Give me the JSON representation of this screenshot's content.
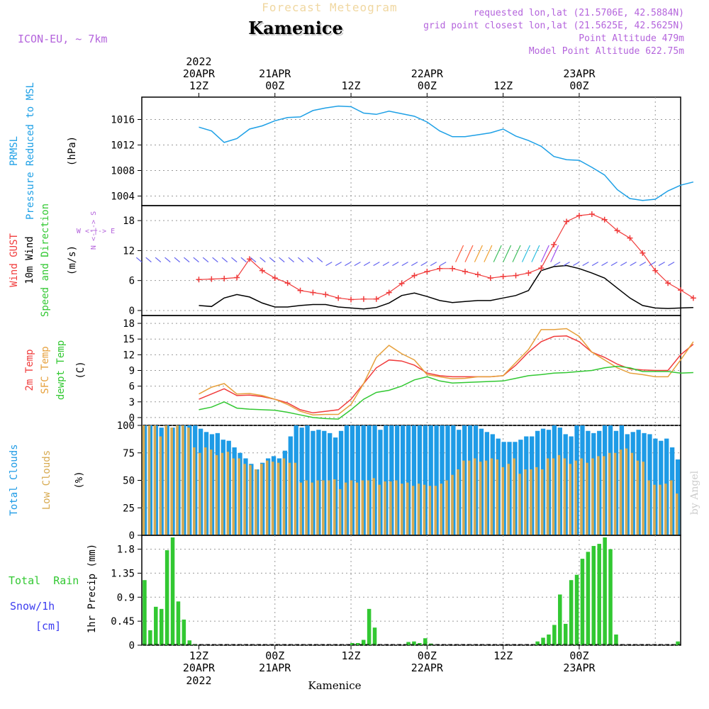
{
  "header": {
    "product": "Forecast Meteogram",
    "location": "Kamenice",
    "model": "ICON-EU, ~ 7km",
    "requested": "requested lon,lat (21.5706E, 42.5884N)",
    "gridpoint": "grid point closest lon,lat (21.5625E, 42.5625N)",
    "point_alt": "Point Altitude 479m",
    "model_alt": "Model Point Altitude 622.75m",
    "footer": "Kamenice",
    "credit": "by Angel"
  },
  "time_axis": {
    "top": [
      {
        "l1": "2022",
        "l2": "20APR",
        "l3": "12Z"
      },
      {
        "l1": "",
        "l2": "21APR",
        "l3": "00Z"
      },
      {
        "l1": "",
        "l2": "",
        "l3": "12Z"
      },
      {
        "l1": "",
        "l2": "22APR",
        "l3": "00Z"
      },
      {
        "l1": "",
        "l2": "",
        "l3": "12Z"
      },
      {
        "l1": "",
        "l2": "23APR",
        "l3": "00Z"
      }
    ],
    "bottom": [
      {
        "l1": "12Z",
        "l2": "20APR",
        "l3": "2022"
      },
      {
        "l1": "00Z",
        "l2": "21APR",
        "l3": ""
      },
      {
        "l1": "12Z",
        "l2": "",
        "l3": ""
      },
      {
        "l1": "00Z",
        "l2": "22APR",
        "l3": ""
      },
      {
        "l1": "12Z",
        "l2": "",
        "l3": ""
      },
      {
        "l1": "00Z",
        "l2": "23APR",
        "l3": ""
      }
    ]
  },
  "panel_labels": {
    "pressure": {
      "a": "PRMSL",
      "b": "Pressure Reduced to MSL",
      "unit": "(hPa)"
    },
    "wind": {
      "a": "Wind GUST",
      "b": "10m Wind",
      "c": "Speed and Direction",
      "unit": "(m/s)",
      "compass_ns": "N <-|-> S",
      "compass_we": "W <-|-> E"
    },
    "temp": {
      "a": "2m Temp",
      "b": "SFC Temp",
      "c": "dewpt Temp",
      "unit": "(C)"
    },
    "clouds": {
      "a": "Total Clouds",
      "b": "Low Clouds",
      "unit": "(%)"
    },
    "precip": {
      "a": "Total  Rain",
      "b": "Snow/1h",
      "c": "[cm]",
      "unit": "1hr Precip (mm)"
    }
  },
  "colors": {
    "pressure": "#1ea0e6",
    "gust": "#f03c3c",
    "wind10": "#000000",
    "t2m": "#f03c3c",
    "tsfc": "#e6a03c",
    "dewpt": "#32c832",
    "total_clouds": "#1e9be6",
    "low_clouds": "#d7aa50",
    "rain": "#32c832",
    "snow": "#3c3cf0",
    "arrows": "#6464f0",
    "label_purple": "#b464dc"
  },
  "chart_data": [
    {
      "type": "line",
      "title": "PRMSL Pressure Reduced to MSL",
      "ylabel": "hPa",
      "ylim": [
        1002.5,
        1019.5
      ],
      "yticks": [
        1004,
        1008,
        1012,
        1016
      ],
      "x_hours": [
        0,
        2,
        4,
        6,
        8,
        10,
        12,
        14,
        16,
        18,
        20,
        22,
        24,
        26,
        28,
        30,
        32,
        34,
        36,
        38,
        40,
        42,
        44,
        46,
        48,
        50,
        52,
        54,
        56,
        58,
        60,
        62,
        64,
        66,
        68,
        70,
        72,
        74,
        76,
        78
      ],
      "series": [
        {
          "name": "PRMSL",
          "values": [
            1014.8,
            1014.2,
            1012.4,
            1013.0,
            1014.5,
            1015.0,
            1015.8,
            1016.3,
            1016.4,
            1017.4,
            1017.8,
            1018.1,
            1018.0,
            1017.0,
            1016.8,
            1017.3,
            1016.9,
            1016.5,
            1015.6,
            1014.2,
            1013.3,
            1013.3,
            1013.6,
            1013.9,
            1014.5,
            1013.4,
            1012.7,
            1011.8,
            1010.2,
            1009.7,
            1009.6,
            1008.5,
            1007.3,
            1005.0,
            1003.6,
            1003.3,
            1003.5,
            1004.8,
            1005.7,
            1006.2
          ]
        }
      ]
    },
    {
      "type": "line",
      "title": "Wind GUST / 10m Wind Speed and Direction",
      "ylabel": "m/s",
      "ylim": [
        -1,
        21
      ],
      "yticks": [
        0,
        6,
        12,
        18
      ],
      "x_hours": [
        0,
        2,
        4,
        6,
        8,
        10,
        12,
        14,
        16,
        18,
        20,
        22,
        24,
        26,
        28,
        30,
        32,
        34,
        36,
        38,
        40,
        42,
        44,
        46,
        48,
        50,
        52,
        54,
        56,
        58,
        60,
        62,
        64,
        66,
        68,
        70,
        72,
        74,
        76,
        78
      ],
      "series": [
        {
          "name": "Wind GUST",
          "values": [
            6.2,
            6.3,
            6.4,
            6.6,
            10.3,
            8.0,
            6.5,
            5.5,
            4.0,
            3.6,
            3.2,
            2.5,
            2.2,
            2.3,
            2.3,
            3.6,
            5.4,
            7.0,
            7.8,
            8.4,
            8.4,
            7.8,
            7.2,
            6.5,
            6.8,
            7.0,
            7.5,
            8.5,
            13.2,
            17.8,
            19.0,
            19.3,
            18.2,
            16.0,
            14.5,
            11.5,
            8.0,
            5.5,
            4.1,
            2.5
          ]
        },
        {
          "name": "10m Wind",
          "values": [
            1.0,
            0.8,
            2.5,
            3.2,
            2.7,
            1.5,
            0.7,
            0.7,
            1.0,
            1.2,
            1.2,
            0.7,
            0.5,
            0.3,
            0.6,
            1.5,
            3.0,
            3.5,
            2.8,
            2.0,
            1.6,
            1.8,
            2.0,
            2.0,
            2.5,
            3.0,
            4.0,
            8.0,
            8.8,
            9.0,
            8.4,
            7.5,
            6.5,
            4.5,
            2.5,
            1.0,
            0.5,
            0.4,
            0.5,
            0.6
          ]
        }
      ]
    },
    {
      "type": "line",
      "title": "2m Temp / SFC Temp / dewpt Temp",
      "ylabel": "C",
      "ylim": [
        -1.5,
        19.5
      ],
      "yticks": [
        0,
        3,
        6,
        9,
        12,
        15,
        18
      ],
      "x_hours": [
        0,
        2,
        4,
        6,
        8,
        10,
        12,
        14,
        16,
        18,
        20,
        22,
        24,
        26,
        28,
        30,
        32,
        34,
        36,
        38,
        40,
        42,
        44,
        46,
        48,
        50,
        52,
        54,
        56,
        58,
        60,
        62,
        64,
        66,
        68,
        70,
        72,
        74,
        76,
        78
      ],
      "series": [
        {
          "name": "2m Temp",
          "values": [
            3.5,
            4.5,
            5.5,
            4.2,
            4.3,
            4.0,
            3.5,
            2.8,
            1.5,
            0.9,
            1.2,
            1.5,
            3.5,
            6.5,
            9.5,
            11.0,
            10.8,
            10.0,
            8.5,
            8.0,
            7.8,
            7.8,
            7.8,
            7.8,
            8.0,
            10.0,
            12.5,
            14.5,
            15.5,
            15.6,
            14.5,
            12.5,
            11.5,
            10.2,
            9.3,
            9.1,
            9.0,
            9.0,
            12.0,
            14.0
          ]
        },
        {
          "name": "SFC Temp",
          "values": [
            4.5,
            5.8,
            6.5,
            4.5,
            4.6,
            4.2,
            3.5,
            2.5,
            1.2,
            0.5,
            0.6,
            0.6,
            2.5,
            6.5,
            11.5,
            13.8,
            12.2,
            11.0,
            8.2,
            7.8,
            7.4,
            7.5,
            7.8,
            7.8,
            8.0,
            10.5,
            13.0,
            16.8,
            16.8,
            17.0,
            15.5,
            12.5,
            11.0,
            9.5,
            8.5,
            8.2,
            7.8,
            7.8,
            11.0,
            14.5
          ]
        },
        {
          "name": "dewpt Temp",
          "values": [
            1.5,
            2.0,
            3.0,
            1.8,
            1.6,
            1.5,
            1.4,
            1.0,
            0.5,
            0.0,
            -0.2,
            -0.3,
            1.5,
            3.5,
            4.8,
            5.2,
            6.0,
            7.2,
            7.8,
            7.0,
            6.6,
            6.7,
            6.8,
            6.9,
            7.0,
            7.5,
            8.0,
            8.2,
            8.5,
            8.6,
            8.8,
            9.0,
            9.5,
            9.8,
            9.5,
            8.8,
            8.8,
            8.8,
            8.5,
            8.6
          ]
        }
      ]
    },
    {
      "type": "bar",
      "title": "Total Clouds / Low Clouds",
      "ylabel": "%",
      "ylim": [
        0,
        100
      ],
      "yticks": [
        0,
        25,
        50,
        75,
        100
      ],
      "series": [
        {
          "name": "Total Clouds",
          "values": [
            100,
            100,
            100,
            98,
            100,
            98,
            100,
            100,
            100,
            100,
            97,
            94,
            92,
            93,
            87,
            86,
            80,
            75,
            70,
            65,
            60,
            66,
            70,
            72,
            70,
            77,
            90,
            100,
            98,
            100,
            95,
            96,
            95,
            93,
            89,
            95,
            100,
            100,
            100,
            100,
            100,
            100,
            96,
            100,
            100,
            100,
            100,
            100,
            100,
            100,
            100,
            100,
            100,
            100,
            100,
            100,
            96,
            100,
            100,
            100,
            97,
            94,
            92,
            88,
            85,
            85,
            85,
            87,
            90,
            90,
            95,
            97,
            96,
            100,
            98,
            92,
            90,
            100,
            100,
            95,
            93,
            95,
            100,
            100,
            95,
            100,
            92,
            94,
            96,
            93,
            92,
            88,
            86,
            88,
            80,
            69
          ]
        },
        {
          "name": "Low Clouds",
          "values": [
            100,
            100,
            100,
            90,
            100,
            98,
            100,
            100,
            98,
            80,
            75,
            80,
            78,
            73,
            75,
            76,
            70,
            70,
            65,
            64,
            60,
            65,
            68,
            67,
            66,
            70,
            66,
            66,
            48,
            50,
            48,
            50,
            50,
            50,
            51,
            42,
            48,
            50,
            48,
            50,
            50,
            52,
            46,
            49,
            49,
            50,
            47,
            48,
            45,
            47,
            46,
            45,
            45,
            47,
            50,
            55,
            60,
            68,
            68,
            70,
            67,
            68,
            70,
            69,
            62,
            65,
            70,
            56,
            60,
            60,
            62,
            60,
            70,
            70,
            73,
            70,
            65,
            68,
            70,
            66,
            70,
            72,
            72,
            75,
            75,
            78,
            79,
            75,
            68,
            67,
            50,
            46,
            46,
            47,
            50,
            38
          ]
        }
      ]
    },
    {
      "type": "bar",
      "title": "1hr Precip",
      "ylabel": "mm",
      "ylim": [
        0,
        2.06
      ],
      "yticks": [
        0,
        0.45,
        0.9,
        1.35,
        1.8
      ],
      "series": [
        {
          "name": "Total Rain",
          "values": [
            1.22,
            0.28,
            0.72,
            0.68,
            1.78,
            2.02,
            0.82,
            0.48,
            0.09,
            0.02,
            0,
            0,
            0,
            0,
            0,
            0,
            0,
            0,
            0,
            0,
            0,
            0,
            0,
            0,
            0,
            0,
            0,
            0,
            0,
            0,
            0,
            0,
            0,
            0,
            0,
            0,
            0,
            0.04,
            0.04,
            0.1,
            0.68,
            0.33,
            0,
            0,
            0,
            0,
            0,
            0.06,
            0.07,
            0.04,
            0.13,
            0.03,
            0,
            0,
            0,
            0,
            0,
            0,
            0,
            0,
            0,
            0,
            0,
            0,
            0,
            0,
            0,
            0,
            0,
            0,
            0.07,
            0.14,
            0.2,
            0.38,
            0.95,
            0.4,
            1.22,
            1.32,
            1.62,
            1.75,
            1.86,
            1.9,
            2.02,
            1.8,
            0.2,
            0,
            0,
            0,
            0,
            0,
            0,
            0,
            0,
            0,
            0,
            0.07
          ]
        },
        {
          "name": "Snow/1h",
          "values": []
        }
      ]
    }
  ]
}
